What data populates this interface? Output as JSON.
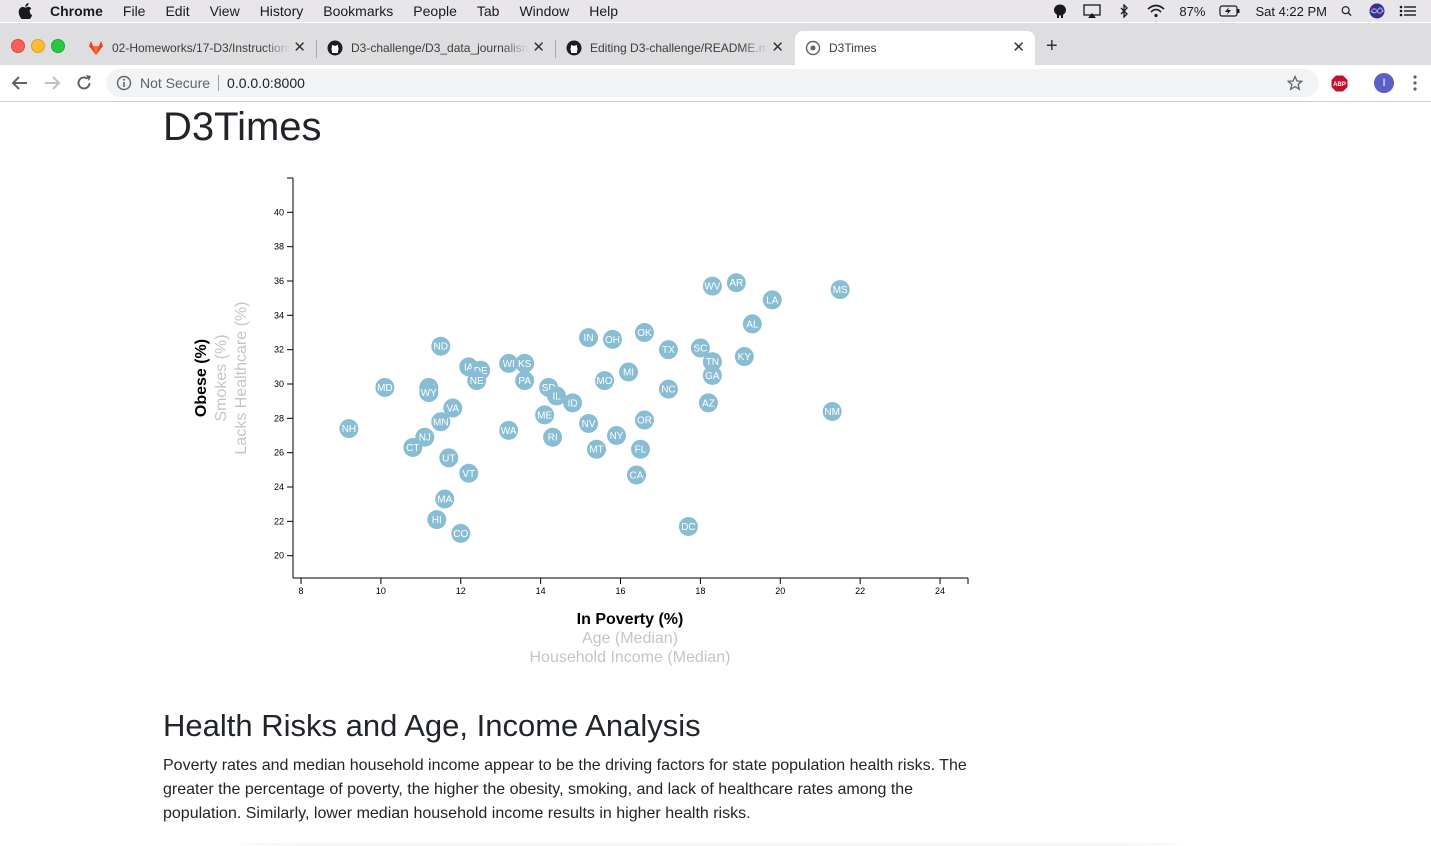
{
  "menubar": {
    "app": "Chrome",
    "items": [
      "File",
      "Edit",
      "View",
      "History",
      "Bookmarks",
      "People",
      "Tab",
      "Window",
      "Help"
    ],
    "battery": "87%",
    "clock": "Sat 4:22 PM"
  },
  "tabs": [
    {
      "title": "02-Homeworks/17-D3/Instructions",
      "favicon": "gitlab-icon"
    },
    {
      "title": "D3-challenge/D3_data_journalism",
      "favicon": "github-icon"
    },
    {
      "title": "Editing D3-challenge/README.md",
      "favicon": "github-icon"
    },
    {
      "title": "D3Times",
      "favicon": "globe-icon"
    }
  ],
  "toolbar": {
    "security": "Not Secure",
    "url": "0.0.0.0:8000",
    "profile_initial": "I",
    "abp_label": "ABP"
  },
  "page": {
    "title": "D3Times",
    "section_title": "Health Risks and Age, Income Analysis",
    "analysis": "Poverty rates and median household income appear to be the driving factors for state population health risks. The greater the percentage of poverty, the higher the obesity, smoking, and lack of healthcare rates among the population. Similarly, lower median household income results in higher health risks."
  },
  "chart_data": {
    "type": "scatter",
    "x_labels": [
      {
        "text": "In Poverty (%)",
        "active": true
      },
      {
        "text": "Age (Median)",
        "active": false
      },
      {
        "text": "Household Income (Median)",
        "active": false
      }
    ],
    "y_labels": [
      {
        "text": "Obese (%)",
        "active": true
      },
      {
        "text": "Smokes (%)",
        "active": false
      },
      {
        "text": "Lacks Healthcare (%)",
        "active": false
      }
    ],
    "xlim": [
      7.8,
      24.7
    ],
    "ylim": [
      18.7,
      42.0
    ],
    "x_ticks": [
      8,
      10,
      12,
      14,
      16,
      18,
      20,
      22,
      24
    ],
    "y_ticks": [
      20,
      22,
      24,
      26,
      28,
      30,
      32,
      34,
      36,
      38,
      40
    ],
    "marker_color": "#89bdd3",
    "points": [
      {
        "abbr": "NH",
        "x": 9.2,
        "y": 27.4
      },
      {
        "abbr": "MD",
        "x": 10.1,
        "y": 29.8
      },
      {
        "abbr": "CT",
        "x": 10.8,
        "y": 26.3
      },
      {
        "abbr": "NJ",
        "x": 11.1,
        "y": 26.9
      },
      {
        "abbr": "AK",
        "x": 11.2,
        "y": 29.8
      },
      {
        "abbr": "WY",
        "x": 11.2,
        "y": 29.5
      },
      {
        "abbr": "HI",
        "x": 11.4,
        "y": 22.1
      },
      {
        "abbr": "ND",
        "x": 11.5,
        "y": 32.2
      },
      {
        "abbr": "MN",
        "x": 11.5,
        "y": 27.8
      },
      {
        "abbr": "MA",
        "x": 11.6,
        "y": 23.3
      },
      {
        "abbr": "UT",
        "x": 11.7,
        "y": 25.7
      },
      {
        "abbr": "VA",
        "x": 11.8,
        "y": 28.6
      },
      {
        "abbr": "CO",
        "x": 12.0,
        "y": 21.3
      },
      {
        "abbr": "IA",
        "x": 12.2,
        "y": 31.0
      },
      {
        "abbr": "VT",
        "x": 12.2,
        "y": 24.8
      },
      {
        "abbr": "DE",
        "x": 12.5,
        "y": 30.8
      },
      {
        "abbr": "NE",
        "x": 12.4,
        "y": 30.2
      },
      {
        "abbr": "WA",
        "x": 13.2,
        "y": 27.3
      },
      {
        "abbr": "WI",
        "x": 13.2,
        "y": 31.2
      },
      {
        "abbr": "KS",
        "x": 13.6,
        "y": 31.2
      },
      {
        "abbr": "PA",
        "x": 13.6,
        "y": 30.2
      },
      {
        "abbr": "ME",
        "x": 14.1,
        "y": 28.2
      },
      {
        "abbr": "SD",
        "x": 14.2,
        "y": 29.8
      },
      {
        "abbr": "RI",
        "x": 14.3,
        "y": 26.9
      },
      {
        "abbr": "IL",
        "x": 14.4,
        "y": 29.3
      },
      {
        "abbr": "ID",
        "x": 14.8,
        "y": 28.9
      },
      {
        "abbr": "IN",
        "x": 15.2,
        "y": 32.7
      },
      {
        "abbr": "NV",
        "x": 15.2,
        "y": 27.7
      },
      {
        "abbr": "MT",
        "x": 15.4,
        "y": 26.2
      },
      {
        "abbr": "MO",
        "x": 15.6,
        "y": 30.2
      },
      {
        "abbr": "OH",
        "x": 15.8,
        "y": 32.6
      },
      {
        "abbr": "NY",
        "x": 15.9,
        "y": 27.0
      },
      {
        "abbr": "MI",
        "x": 16.2,
        "y": 30.7
      },
      {
        "abbr": "CA",
        "x": 16.4,
        "y": 24.7
      },
      {
        "abbr": "FL",
        "x": 16.5,
        "y": 26.2
      },
      {
        "abbr": "OR",
        "x": 16.6,
        "y": 27.9
      },
      {
        "abbr": "OK",
        "x": 16.6,
        "y": 33.0
      },
      {
        "abbr": "TX",
        "x": 17.2,
        "y": 32.0
      },
      {
        "abbr": "NC",
        "x": 17.2,
        "y": 29.7
      },
      {
        "abbr": "DC",
        "x": 17.7,
        "y": 21.7
      },
      {
        "abbr": "SC",
        "x": 18.0,
        "y": 32.1
      },
      {
        "abbr": "AZ",
        "x": 18.2,
        "y": 28.9
      },
      {
        "abbr": "TN",
        "x": 18.3,
        "y": 31.3
      },
      {
        "abbr": "GA",
        "x": 18.3,
        "y": 30.5
      },
      {
        "abbr": "WV",
        "x": 18.3,
        "y": 35.7
      },
      {
        "abbr": "AR",
        "x": 18.9,
        "y": 35.9
      },
      {
        "abbr": "KY",
        "x": 19.1,
        "y": 31.6
      },
      {
        "abbr": "AL",
        "x": 19.3,
        "y": 33.5
      },
      {
        "abbr": "LA",
        "x": 19.8,
        "y": 34.9
      },
      {
        "abbr": "NM",
        "x": 21.3,
        "y": 28.4
      },
      {
        "abbr": "MS",
        "x": 21.5,
        "y": 35.5
      }
    ]
  }
}
